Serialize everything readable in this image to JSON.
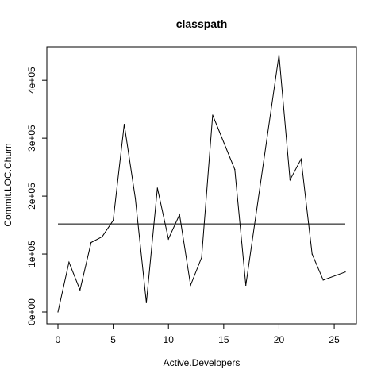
{
  "chart_data": {
    "type": "line",
    "title": "classpath",
    "xlabel": "Active.Developers",
    "ylabel": "Commit.LOC.Churn",
    "xlim": [
      0,
      26
    ],
    "ylim": [
      0,
      440000
    ],
    "x_ticks": [
      0,
      5,
      10,
      15,
      20,
      25
    ],
    "x_tick_labels": [
      "0",
      "5",
      "10",
      "15",
      "20",
      "25"
    ],
    "y_ticks": [
      0,
      100000,
      200000,
      300000,
      400000
    ],
    "y_tick_labels": [
      "0e+00",
      "1e+05",
      "2e+05",
      "3e+05",
      "4e+05"
    ],
    "grid": false,
    "series": [
      {
        "x": [
          0,
          1,
          2,
          3,
          4,
          5,
          6,
          7,
          8,
          9,
          10,
          11,
          12,
          13,
          14,
          16,
          17,
          20,
          21,
          22,
          23,
          24,
          26
        ],
        "y": [
          0,
          86000,
          38000,
          120000,
          130000,
          158000,
          324000,
          196000,
          16000,
          214000,
          126000,
          168000,
          46000,
          94000,
          340000,
          246000,
          46000,
          444000,
          228000,
          264000,
          100000,
          55000,
          69000
        ]
      }
    ],
    "reference_line": {
      "y": 152000
    }
  }
}
